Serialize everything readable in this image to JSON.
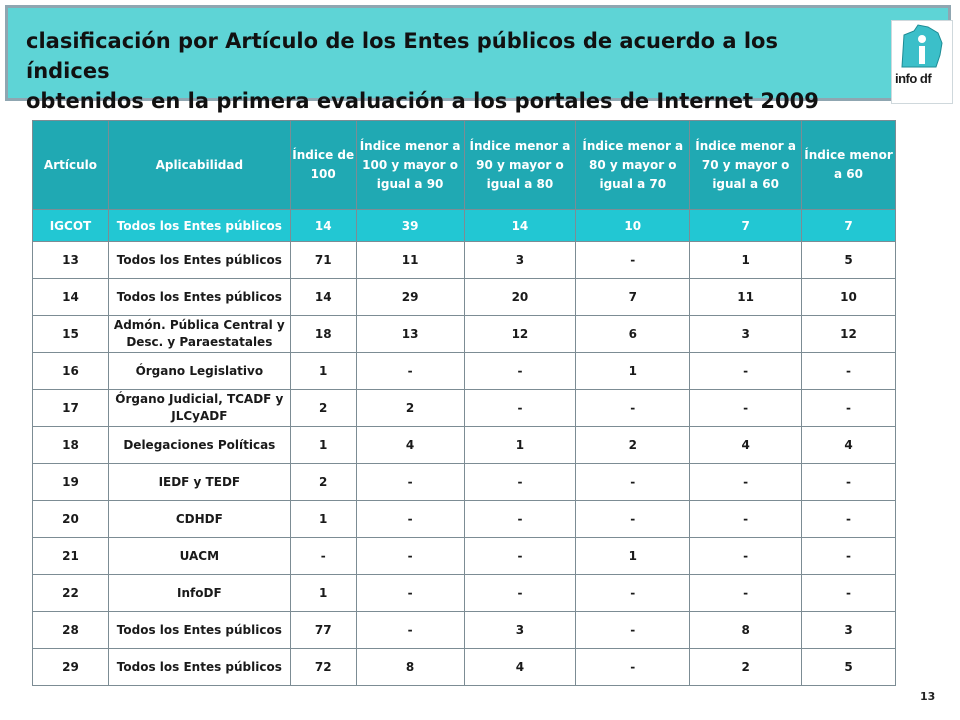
{
  "header": {
    "title_line1": "clasificación por Artículo de los Entes públicos de acuerdo a los índices",
    "title_line2": "obtenidos en la primera evaluación a los portales de Internet 2009",
    "logo_text": "info df",
    "background_color": "#5ed4d6"
  },
  "table": {
    "columns": [
      "Artículo",
      "Aplicabilidad",
      "Índice de 100",
      "Índice menor a 100 y mayor o igual a 90",
      "Índice menor a 90 y mayor o igual a 80",
      "Índice menor a 80 y mayor o igual a 70",
      "Índice menor a 70 y mayor o igual a 60",
      "Índice menor a 60"
    ],
    "header_color": "#20a9b3",
    "highlight_color": "#22c7d3",
    "rows": [
      [
        "IGCOT",
        "Todos los Entes públicos",
        "14",
        "39",
        "14",
        "10",
        "7",
        "7"
      ],
      [
        "13",
        "Todos los Entes públicos",
        "71",
        "11",
        "3",
        "-",
        "1",
        "5"
      ],
      [
        "14",
        "Todos los Entes públicos",
        "14",
        "29",
        "20",
        "7",
        "11",
        "10"
      ],
      [
        "15",
        "Admón. Pública Central y Desc. y Paraestatales",
        "18",
        "13",
        "12",
        "6",
        "3",
        "12"
      ],
      [
        "16",
        "Órgano Legislativo",
        "1",
        "-",
        "-",
        "1",
        "-",
        "-"
      ],
      [
        "17",
        "Órgano Judicial, TCADF y JLCyADF",
        "2",
        "2",
        "-",
        "-",
        "-",
        "-"
      ],
      [
        "18",
        "Delegaciones Políticas",
        "1",
        "4",
        "1",
        "2",
        "4",
        "4"
      ],
      [
        "19",
        "IEDF y TEDF",
        "2",
        "-",
        "-",
        "-",
        "-",
        "-"
      ],
      [
        "20",
        "CDHDF",
        "1",
        "-",
        "-",
        "-",
        "-",
        "-"
      ],
      [
        "21",
        "UACM",
        "-",
        "-",
        "-",
        "1",
        "-",
        "-"
      ],
      [
        "22",
        "InfoDF",
        "1",
        "-",
        "-",
        "-",
        "-",
        "-"
      ],
      [
        "28",
        "Todos los Entes públicos",
        "77",
        "-",
        "3",
        "-",
        "8",
        "3"
      ],
      [
        "29",
        "Todos los Entes públicos",
        "72",
        "8",
        "4",
        "-",
        "2",
        "5"
      ]
    ]
  },
  "page_number": "13"
}
